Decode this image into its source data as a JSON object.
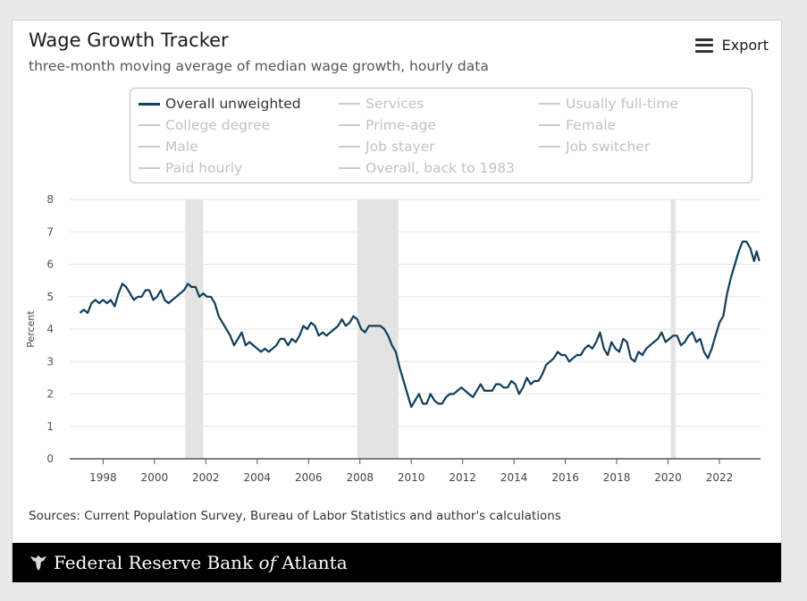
{
  "header": {
    "title": "Wage Growth Tracker",
    "subtitle": "three-month moving average of median wage growth, hourly data",
    "export_label": "Export"
  },
  "legend": [
    {
      "label": "Overall unweighted",
      "active": true
    },
    {
      "label": "Services",
      "active": false
    },
    {
      "label": "Usually full-time",
      "active": false
    },
    {
      "label": "College degree",
      "active": false
    },
    {
      "label": "Prime-age",
      "active": false
    },
    {
      "label": "Female",
      "active": false
    },
    {
      "label": "Male",
      "active": false
    },
    {
      "label": "Job stayer",
      "active": false
    },
    {
      "label": "Job switcher",
      "active": false
    },
    {
      "label": "Paid hourly",
      "active": false
    },
    {
      "label": "Overall, back to 1983",
      "active": false
    }
  ],
  "source": "Sources: Current Population Survey, Bureau of Labor Statistics and author's calculations",
  "footer": {
    "brand_prefix": "Federal Reserve Bank ",
    "brand_of": "of",
    "brand_suffix": " Atlanta"
  },
  "colors": {
    "line": "#123e5a",
    "recession": "#e3e3e3",
    "grid": "#e6e6e6",
    "axis": "#555555"
  },
  "chart_data": {
    "type": "line",
    "title": "Wage Growth Tracker",
    "ylabel": "Percent",
    "xlabel": "",
    "xlim": [
      1996.7,
      2023.6
    ],
    "ylim": [
      0,
      8
    ],
    "yticks": [
      0,
      1,
      2,
      3,
      4,
      5,
      6,
      7,
      8
    ],
    "xticks": [
      1998,
      2000,
      2002,
      2004,
      2006,
      2008,
      2010,
      2012,
      2014,
      2016,
      2018,
      2020,
      2022
    ],
    "grid": true,
    "legend_position": "top",
    "recessions": [
      [
        2001.2,
        2001.9
      ],
      [
        2007.9,
        2009.5
      ],
      [
        2020.1,
        2020.3
      ]
    ],
    "series": [
      {
        "name": "Overall unweighted",
        "points": [
          [
            1997.1,
            4.5
          ],
          [
            1997.25,
            4.6
          ],
          [
            1997.4,
            4.5
          ],
          [
            1997.55,
            4.8
          ],
          [
            1997.7,
            4.9
          ],
          [
            1997.85,
            4.8
          ],
          [
            1998.0,
            4.9
          ],
          [
            1998.15,
            4.8
          ],
          [
            1998.3,
            4.9
          ],
          [
            1998.45,
            4.7
          ],
          [
            1998.6,
            5.1
          ],
          [
            1998.75,
            5.4
          ],
          [
            1998.9,
            5.3
          ],
          [
            1999.05,
            5.1
          ],
          [
            1999.2,
            4.9
          ],
          [
            1999.35,
            5.0
          ],
          [
            1999.5,
            5.0
          ],
          [
            1999.65,
            5.2
          ],
          [
            1999.8,
            5.2
          ],
          [
            1999.95,
            4.9
          ],
          [
            2000.1,
            5.0
          ],
          [
            2000.25,
            5.2
          ],
          [
            2000.4,
            4.9
          ],
          [
            2000.55,
            4.8
          ],
          [
            2000.7,
            4.9
          ],
          [
            2000.85,
            5.0
          ],
          [
            2001.0,
            5.1
          ],
          [
            2001.15,
            5.2
          ],
          [
            2001.3,
            5.4
          ],
          [
            2001.45,
            5.3
          ],
          [
            2001.6,
            5.3
          ],
          [
            2001.75,
            5.0
          ],
          [
            2001.9,
            5.1
          ],
          [
            2002.05,
            5.0
          ],
          [
            2002.2,
            5.0
          ],
          [
            2002.35,
            4.8
          ],
          [
            2002.5,
            4.4
          ],
          [
            2002.65,
            4.2
          ],
          [
            2002.8,
            4.0
          ],
          [
            2002.95,
            3.8
          ],
          [
            2003.1,
            3.5
          ],
          [
            2003.25,
            3.7
          ],
          [
            2003.4,
            3.9
          ],
          [
            2003.55,
            3.5
          ],
          [
            2003.7,
            3.6
          ],
          [
            2003.85,
            3.5
          ],
          [
            2004.0,
            3.4
          ],
          [
            2004.15,
            3.3
          ],
          [
            2004.3,
            3.4
          ],
          [
            2004.45,
            3.3
          ],
          [
            2004.6,
            3.4
          ],
          [
            2004.75,
            3.5
          ],
          [
            2004.9,
            3.7
          ],
          [
            2005.05,
            3.7
          ],
          [
            2005.2,
            3.5
          ],
          [
            2005.35,
            3.7
          ],
          [
            2005.5,
            3.6
          ],
          [
            2005.65,
            3.8
          ],
          [
            2005.8,
            4.1
          ],
          [
            2005.95,
            4.0
          ],
          [
            2006.1,
            4.2
          ],
          [
            2006.25,
            4.1
          ],
          [
            2006.4,
            3.8
          ],
          [
            2006.55,
            3.9
          ],
          [
            2006.7,
            3.8
          ],
          [
            2006.85,
            3.9
          ],
          [
            2007.0,
            4.0
          ],
          [
            2007.15,
            4.1
          ],
          [
            2007.3,
            4.3
          ],
          [
            2007.45,
            4.1
          ],
          [
            2007.6,
            4.2
          ],
          [
            2007.75,
            4.4
          ],
          [
            2007.9,
            4.3
          ],
          [
            2008.05,
            4.0
          ],
          [
            2008.2,
            3.9
          ],
          [
            2008.35,
            4.1
          ],
          [
            2008.5,
            4.1
          ],
          [
            2008.65,
            4.1
          ],
          [
            2008.8,
            4.1
          ],
          [
            2008.95,
            4.0
          ],
          [
            2009.1,
            3.8
          ],
          [
            2009.25,
            3.5
          ],
          [
            2009.4,
            3.3
          ],
          [
            2009.55,
            2.8
          ],
          [
            2009.7,
            2.4
          ],
          [
            2009.85,
            2.0
          ],
          [
            2010.0,
            1.6
          ],
          [
            2010.15,
            1.8
          ],
          [
            2010.3,
            2.0
          ],
          [
            2010.45,
            1.7
          ],
          [
            2010.6,
            1.7
          ],
          [
            2010.75,
            2.0
          ],
          [
            2010.9,
            1.8
          ],
          [
            2011.05,
            1.7
          ],
          [
            2011.2,
            1.7
          ],
          [
            2011.35,
            1.9
          ],
          [
            2011.5,
            2.0
          ],
          [
            2011.65,
            2.0
          ],
          [
            2011.8,
            2.1
          ],
          [
            2011.95,
            2.2
          ],
          [
            2012.1,
            2.1
          ],
          [
            2012.25,
            2.0
          ],
          [
            2012.4,
            1.9
          ],
          [
            2012.55,
            2.1
          ],
          [
            2012.7,
            2.3
          ],
          [
            2012.85,
            2.1
          ],
          [
            2013.0,
            2.1
          ],
          [
            2013.15,
            2.1
          ],
          [
            2013.3,
            2.3
          ],
          [
            2013.45,
            2.3
          ],
          [
            2013.6,
            2.2
          ],
          [
            2013.75,
            2.2
          ],
          [
            2013.9,
            2.4
          ],
          [
            2014.05,
            2.3
          ],
          [
            2014.2,
            2.0
          ],
          [
            2014.35,
            2.2
          ],
          [
            2014.5,
            2.5
          ],
          [
            2014.65,
            2.3
          ],
          [
            2014.8,
            2.4
          ],
          [
            2014.95,
            2.4
          ],
          [
            2015.1,
            2.6
          ],
          [
            2015.25,
            2.9
          ],
          [
            2015.4,
            3.0
          ],
          [
            2015.55,
            3.1
          ],
          [
            2015.7,
            3.3
          ],
          [
            2015.85,
            3.2
          ],
          [
            2016.0,
            3.2
          ],
          [
            2016.15,
            3.0
          ],
          [
            2016.3,
            3.1
          ],
          [
            2016.45,
            3.2
          ],
          [
            2016.6,
            3.2
          ],
          [
            2016.75,
            3.4
          ],
          [
            2016.9,
            3.5
          ],
          [
            2017.05,
            3.4
          ],
          [
            2017.2,
            3.6
          ],
          [
            2017.35,
            3.9
          ],
          [
            2017.5,
            3.4
          ],
          [
            2017.65,
            3.2
          ],
          [
            2017.8,
            3.6
          ],
          [
            2017.95,
            3.4
          ],
          [
            2018.1,
            3.3
          ],
          [
            2018.25,
            3.7
          ],
          [
            2018.4,
            3.6
          ],
          [
            2018.55,
            3.1
          ],
          [
            2018.7,
            3.0
          ],
          [
            2018.85,
            3.3
          ],
          [
            2019.0,
            3.2
          ],
          [
            2019.15,
            3.4
          ],
          [
            2019.3,
            3.5
          ],
          [
            2019.45,
            3.6
          ],
          [
            2019.6,
            3.7
          ],
          [
            2019.75,
            3.9
          ],
          [
            2019.9,
            3.6
          ],
          [
            2020.05,
            3.7
          ],
          [
            2020.2,
            3.8
          ],
          [
            2020.35,
            3.8
          ],
          [
            2020.5,
            3.5
          ],
          [
            2020.65,
            3.6
          ],
          [
            2020.8,
            3.8
          ],
          [
            2020.95,
            3.9
          ],
          [
            2021.1,
            3.6
          ],
          [
            2021.25,
            3.7
          ],
          [
            2021.4,
            3.3
          ],
          [
            2021.55,
            3.1
          ],
          [
            2021.7,
            3.4
          ],
          [
            2021.85,
            3.8
          ],
          [
            2022.0,
            4.2
          ],
          [
            2022.15,
            4.4
          ],
          [
            2022.3,
            5.1
          ],
          [
            2022.45,
            5.6
          ],
          [
            2022.6,
            6.0
          ],
          [
            2022.75,
            6.4
          ],
          [
            2022.9,
            6.7
          ],
          [
            2023.05,
            6.7
          ],
          [
            2023.2,
            6.5
          ],
          [
            2023.35,
            6.1
          ],
          [
            2023.45,
            6.4
          ],
          [
            2023.55,
            6.1
          ]
        ]
      }
    ]
  }
}
